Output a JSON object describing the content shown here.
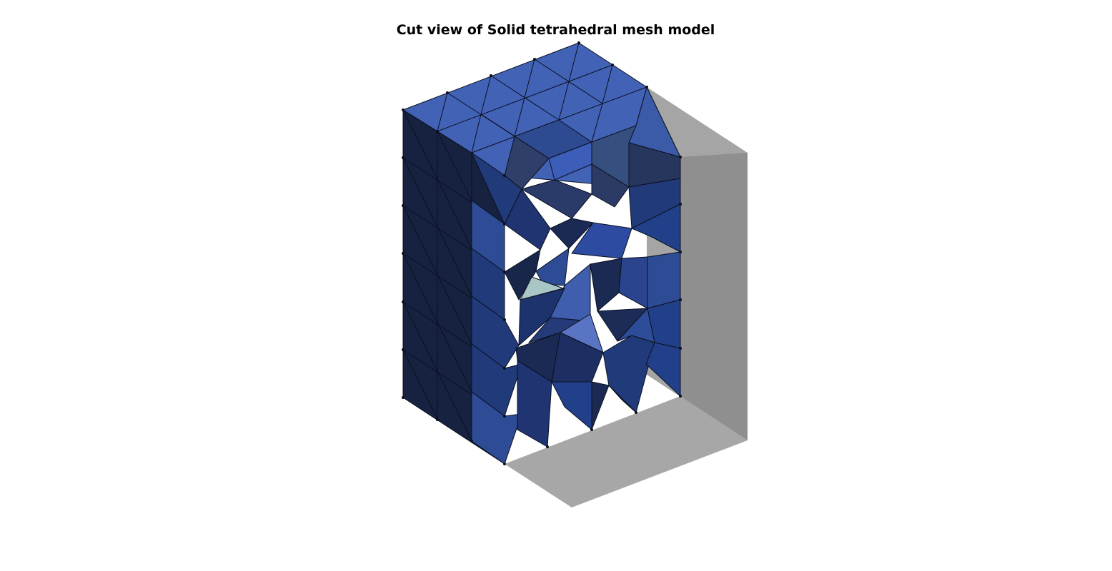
{
  "figure": {
    "title": "Cut view of Solid tetrahedral mesh model"
  },
  "colors": {
    "background": "#ffffff",
    "bounding_box_light": "#a7a7a7",
    "bounding_box_dark": "#8f8f8f",
    "top_face": "#4262b6",
    "side_face_dark": "#172240",
    "inner_mid": "#203a7a",
    "inner_light": "#2e4c96",
    "highlight_face": "#a9c6c6",
    "edge": "#0b1020"
  }
}
